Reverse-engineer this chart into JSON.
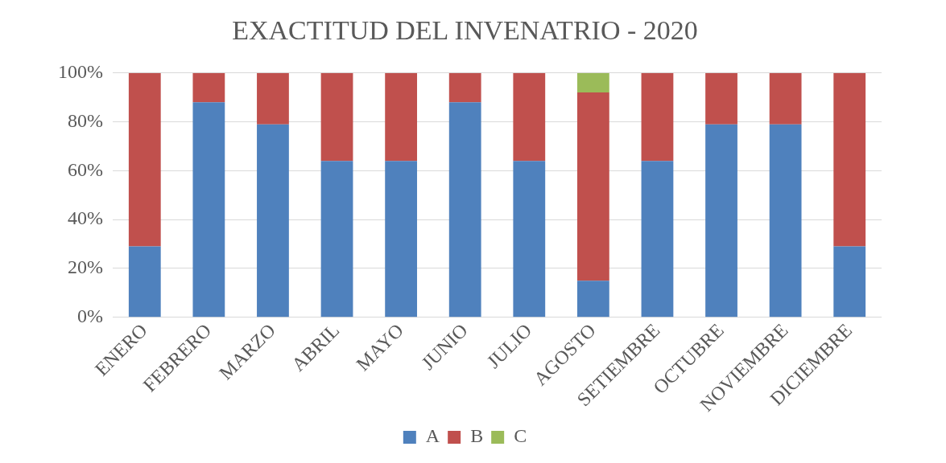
{
  "chart_data": {
    "type": "bar",
    "title": "EXACTITUD DEL INVENATRIO - 2020",
    "stacked": true,
    "categories": [
      "ENERO",
      "FEBRERO",
      "MARZO",
      "ABRIL",
      "MAYO",
      "JUNIO",
      "JULIO",
      "AGOSTO",
      "SETIEMBRE",
      "OCTUBRE",
      "NOVIEMBRE",
      "DICIEMBRE"
    ],
    "series": [
      {
        "name": "A",
        "color": "#4f81bd",
        "values": [
          29,
          88,
          79,
          64,
          64,
          88,
          64,
          15,
          64,
          79,
          79,
          29
        ]
      },
      {
        "name": "B",
        "color": "#c0504d",
        "values": [
          71,
          12,
          21,
          36,
          36,
          12,
          36,
          77,
          36,
          21,
          21,
          71
        ]
      },
      {
        "name": "C",
        "color": "#9bbb59",
        "values": [
          0,
          0,
          0,
          0,
          0,
          0,
          0,
          8,
          0,
          0,
          0,
          0
        ]
      }
    ],
    "ylim": [
      0,
      100
    ],
    "yticks": [
      {
        "value": 0,
        "label": "0%"
      },
      {
        "value": 20,
        "label": "20%"
      },
      {
        "value": 40,
        "label": "40%"
      },
      {
        "value": 60,
        "label": "60%"
      },
      {
        "value": 80,
        "label": "80%"
      },
      {
        "value": 100,
        "label": "100%"
      }
    ],
    "grid": "y",
    "legend": "bottom"
  }
}
